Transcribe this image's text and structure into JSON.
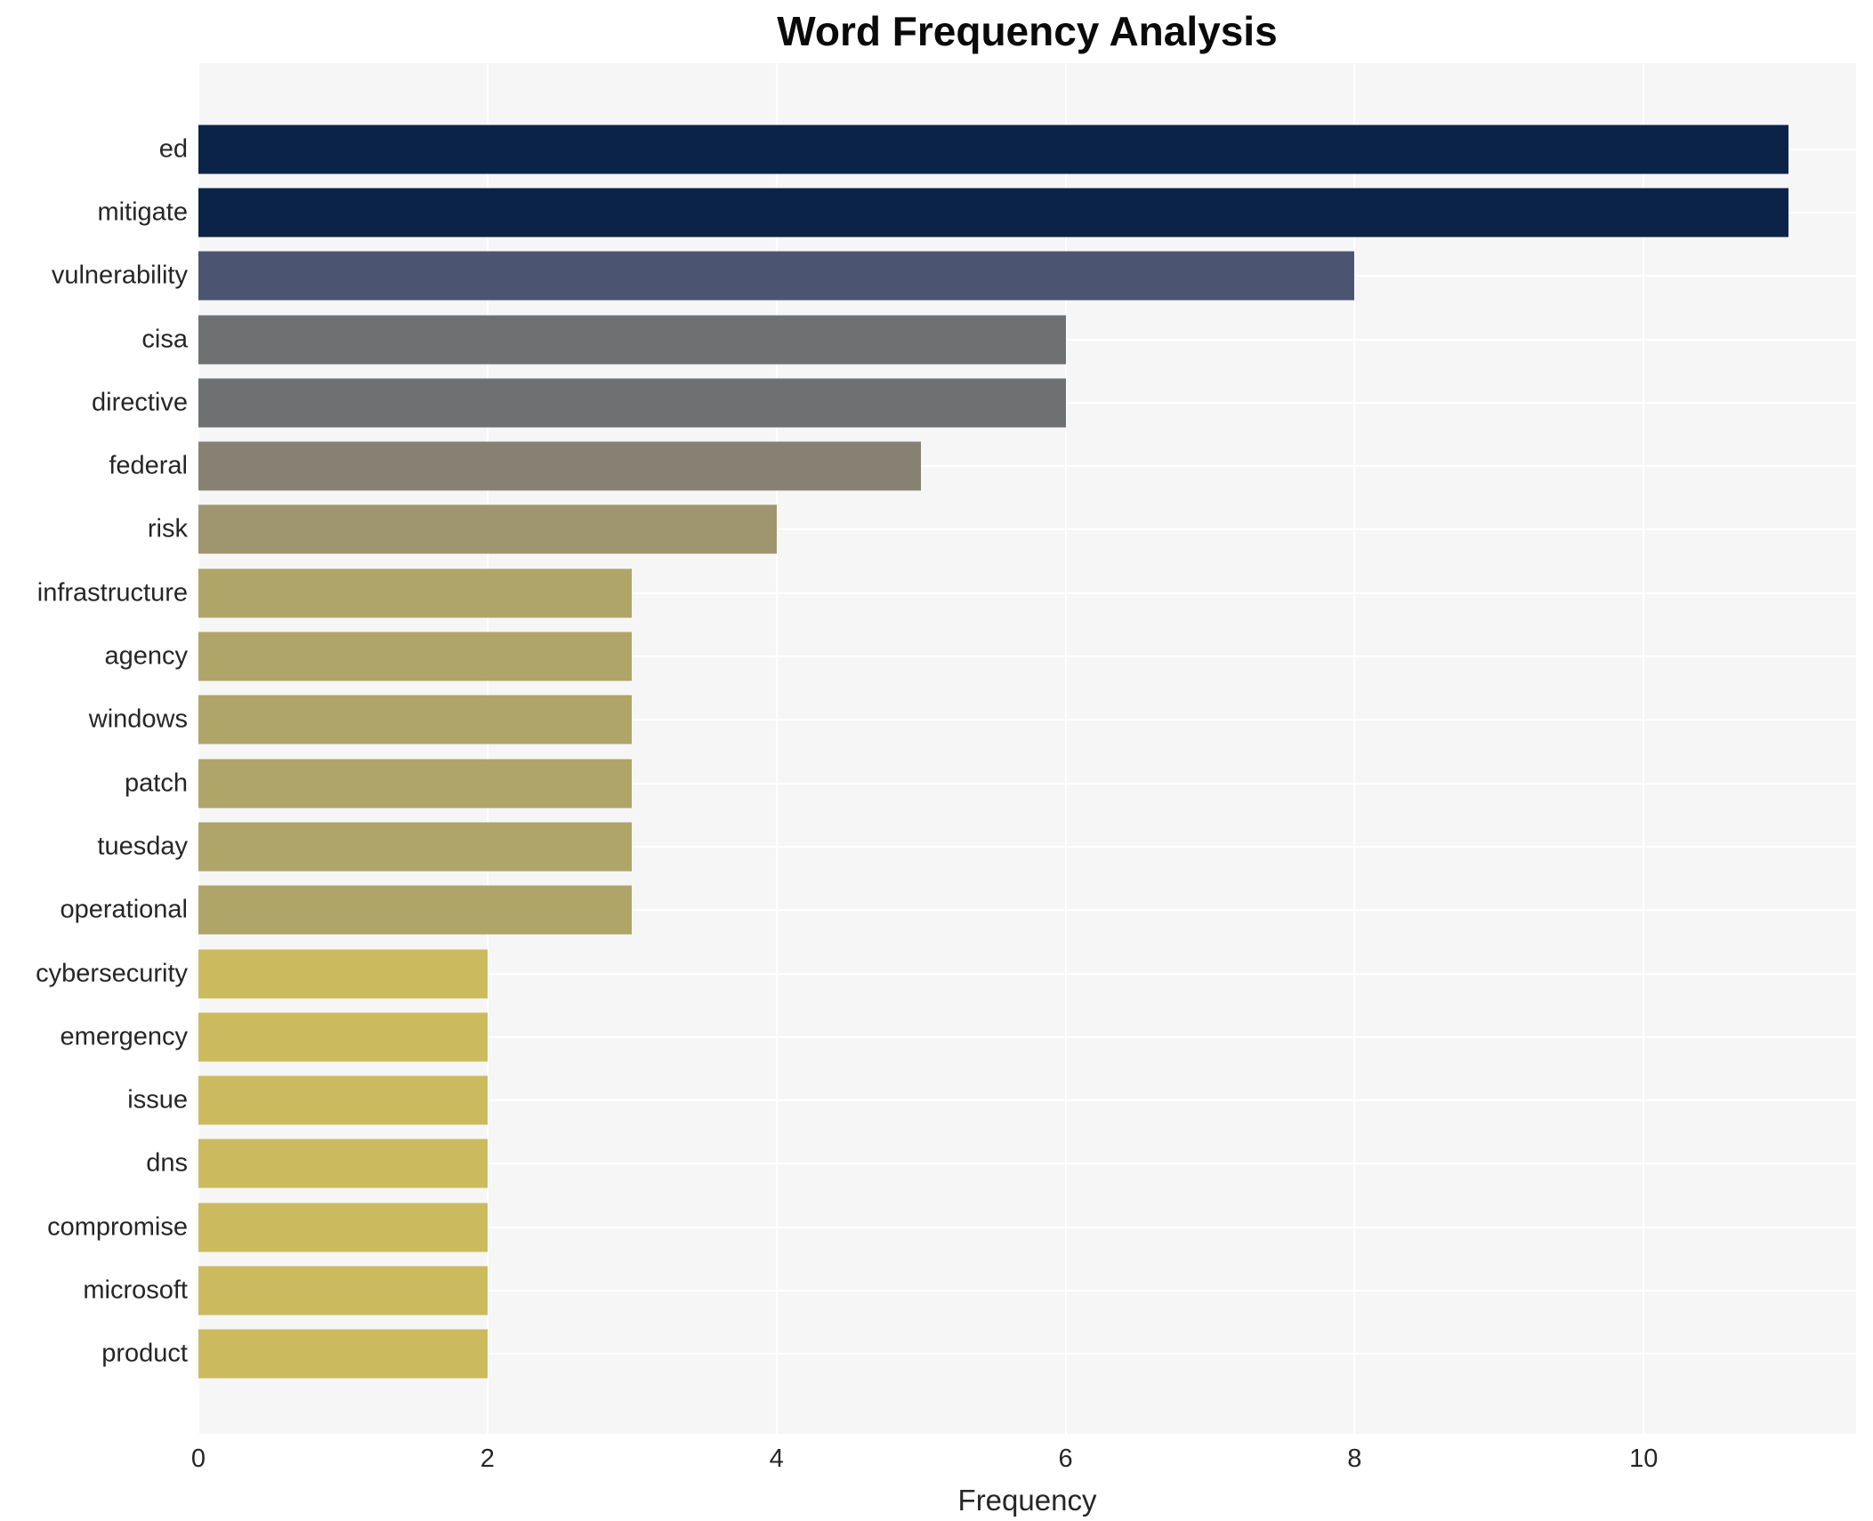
{
  "title": "Word Frequency Analysis",
  "chart_data": {
    "type": "bar",
    "orientation": "horizontal",
    "title": "Word Frequency Analysis",
    "xlabel": "Frequency",
    "ylabel": "",
    "categories": [
      "ed",
      "mitigate",
      "vulnerability",
      "cisa",
      "directive",
      "federal",
      "risk",
      "infrastructure",
      "agency",
      "windows",
      "patch",
      "tuesday",
      "operational",
      "cybersecurity",
      "emergency",
      "issue",
      "dns",
      "compromise",
      "microsoft",
      "product"
    ],
    "values": [
      11,
      11,
      8,
      6,
      6,
      5,
      4,
      3,
      3,
      3,
      3,
      3,
      3,
      2,
      2,
      2,
      2,
      2,
      2,
      2
    ],
    "bar_colors": [
      "#0b2347",
      "#0b2347",
      "#4b5470",
      "#6f7072",
      "#6f7072",
      "#868173",
      "#9f9670",
      "#b0a569",
      "#b0a569",
      "#b0a569",
      "#b0a569",
      "#b0a569",
      "#b0a569",
      "#ccba5e",
      "#ccba5e",
      "#ccba5e",
      "#ccba5e",
      "#ccba5e",
      "#ccba5e",
      "#ccba5e"
    ],
    "xlim": [
      0,
      11.47
    ],
    "xticks": [
      0,
      2,
      4,
      6,
      8,
      10
    ],
    "grid": true,
    "legend": false,
    "plot_background": "#f6f6f7",
    "grid_color": "#ffffff",
    "figure_background": "#ffffff",
    "text_color": "#262626"
  }
}
